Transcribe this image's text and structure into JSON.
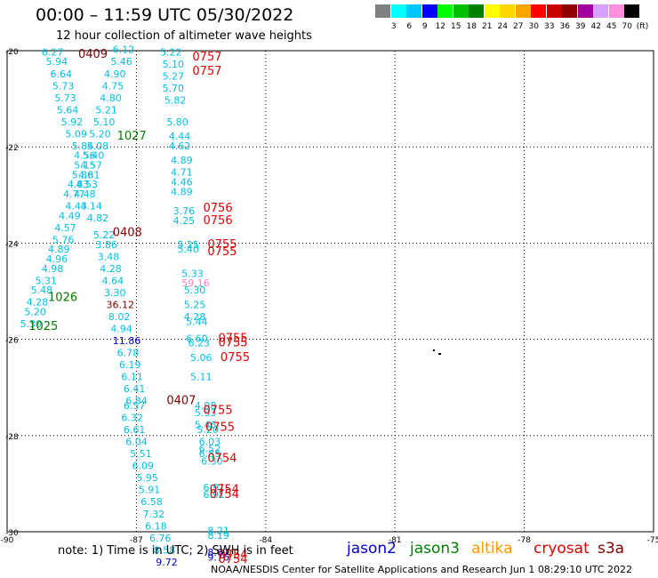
{
  "header": {
    "title": "00:00 – 11:59 UTC 05/30/2022",
    "subtitle": "12 hour collection of altimeter wave heights"
  },
  "legend": {
    "unit": "(ft)",
    "bins": [
      {
        "label": "3",
        "color": "#808080"
      },
      {
        "label": "6",
        "color": "#00ffff"
      },
      {
        "label": "9",
        "color": "#00c8ff"
      },
      {
        "label": "12",
        "color": "#0000ff"
      },
      {
        "label": "15",
        "color": "#00ff00"
      },
      {
        "label": "18",
        "color": "#00c000"
      },
      {
        "label": "21",
        "color": "#008000"
      },
      {
        "label": "24",
        "color": "#ffff00"
      },
      {
        "label": "27",
        "color": "#ffd700"
      },
      {
        "label": "30",
        "color": "#ffa500"
      },
      {
        "label": "33",
        "color": "#ff0000"
      },
      {
        "label": "36",
        "color": "#c80000"
      },
      {
        "label": "39",
        "color": "#900000"
      },
      {
        "label": "42",
        "color": "#a000a0"
      },
      {
        "label": "45",
        "color": "#d8a0ff"
      },
      {
        "label": "70",
        "color": "#ff90e0"
      },
      {
        "label": "",
        "color": "#000000"
      }
    ]
  },
  "map": {
    "lon_range": [
      -90,
      -75
    ],
    "lat_range": [
      -30,
      -20
    ],
    "lon_ticks": [
      "-90",
      "-87",
      "-84",
      "-81",
      "-78",
      "-75"
    ],
    "lat_ticks": [
      "-20",
      "-22",
      "-24",
      "-26",
      "-28",
      "-30"
    ],
    "lon_tick_values": [
      -90,
      -87,
      -84,
      -81,
      -78,
      -75
    ],
    "lat_tick_values": [
      -20,
      -22,
      -24,
      -26,
      -28,
      -30
    ],
    "colors": {
      "cyan": "#00bfe6",
      "blue": "#0000cc",
      "darkred": "#800000",
      "red": "#e00000",
      "green": "#008000",
      "pink": "#ff80c0"
    },
    "measurements": [
      {
        "lon": -89.2,
        "lat": -20.1,
        "v": "6.27",
        "c": "cyan"
      },
      {
        "lon": -89.1,
        "lat": -20.3,
        "v": "5.94",
        "c": "cyan"
      },
      {
        "lon": -89.0,
        "lat": -20.55,
        "v": "6.64",
        "c": "cyan"
      },
      {
        "lon": -88.95,
        "lat": -20.8,
        "v": "5.73",
        "c": "cyan"
      },
      {
        "lon": -88.9,
        "lat": -21.05,
        "v": "5.73",
        "c": "cyan"
      },
      {
        "lon": -88.85,
        "lat": -21.3,
        "v": "5.64",
        "c": "cyan"
      },
      {
        "lon": -88.75,
        "lat": -21.55,
        "v": "5.92",
        "c": "cyan"
      },
      {
        "lon": -88.65,
        "lat": -21.8,
        "v": "5.09",
        "c": "cyan"
      },
      {
        "lon": -88.5,
        "lat": -22.05,
        "v": "5.84",
        "c": "cyan"
      },
      {
        "lon": -88.45,
        "lat": -22.25,
        "v": "4.56",
        "c": "cyan"
      },
      {
        "lon": -88.45,
        "lat": -22.45,
        "v": "5.15",
        "c": "cyan"
      },
      {
        "lon": -88.5,
        "lat": -22.65,
        "v": "5.36",
        "c": "cyan"
      },
      {
        "lon": -88.6,
        "lat": -22.85,
        "v": "4.83",
        "c": "cyan"
      },
      {
        "lon": -88.7,
        "lat": -23.05,
        "v": "4.77",
        "c": "cyan"
      },
      {
        "lon": -88.65,
        "lat": -23.3,
        "v": "4.43",
        "c": "cyan"
      },
      {
        "lon": -88.8,
        "lat": -23.5,
        "v": "4.49",
        "c": "cyan"
      },
      {
        "lon": -88.9,
        "lat": -23.75,
        "v": "4.57",
        "c": "cyan"
      },
      {
        "lon": -88.95,
        "lat": -24.0,
        "v": "5.76",
        "c": "cyan"
      },
      {
        "lon": -89.05,
        "lat": -24.2,
        "v": "4.89",
        "c": "cyan"
      },
      {
        "lon": -89.1,
        "lat": -24.4,
        "v": "4.96",
        "c": "cyan"
      },
      {
        "lon": -89.2,
        "lat": -24.6,
        "v": "4.98",
        "c": "cyan"
      },
      {
        "lon": -89.35,
        "lat": -24.85,
        "v": "5.31",
        "c": "cyan"
      },
      {
        "lon": -89.45,
        "lat": -25.05,
        "v": "5.48",
        "c": "cyan"
      },
      {
        "lon": -89.55,
        "lat": -25.3,
        "v": "4.28",
        "c": "cyan"
      },
      {
        "lon": -89.6,
        "lat": -25.5,
        "v": "5.20",
        "c": "cyan"
      },
      {
        "lon": -89.7,
        "lat": -25.75,
        "v": "5.30",
        "c": "cyan"
      },
      {
        "lon": -87.55,
        "lat": -20.05,
        "v": "6.12",
        "c": "cyan"
      },
      {
        "lon": -87.6,
        "lat": -20.3,
        "v": "5.46",
        "c": "cyan"
      },
      {
        "lon": -87.75,
        "lat": -20.55,
        "v": "4.90",
        "c": "cyan"
      },
      {
        "lon": -87.8,
        "lat": -20.8,
        "v": "4.75",
        "c": "cyan"
      },
      {
        "lon": -87.85,
        "lat": -21.05,
        "v": "4.80",
        "c": "cyan"
      },
      {
        "lon": -87.95,
        "lat": -21.3,
        "v": "5.21",
        "c": "cyan"
      },
      {
        "lon": -88.0,
        "lat": -21.55,
        "v": "5.10",
        "c": "cyan"
      },
      {
        "lon": -88.1,
        "lat": -21.8,
        "v": "5.20",
        "c": "cyan"
      },
      {
        "lon": -88.15,
        "lat": -22.05,
        "v": "5.08",
        "c": "cyan"
      },
      {
        "lon": -88.25,
        "lat": -22.25,
        "v": "5.40",
        "c": "cyan"
      },
      {
        "lon": -88.3,
        "lat": -22.45,
        "v": "4.57",
        "c": "cyan"
      },
      {
        "lon": -88.35,
        "lat": -22.65,
        "v": "4.81",
        "c": "cyan"
      },
      {
        "lon": -88.4,
        "lat": -22.85,
        "v": "4.53",
        "c": "cyan"
      },
      {
        "lon": -88.45,
        "lat": -23.05,
        "v": "4.48",
        "c": "cyan"
      },
      {
        "lon": -88.3,
        "lat": -23.3,
        "v": "4.14",
        "c": "cyan"
      },
      {
        "lon": -88.15,
        "lat": -23.55,
        "v": "4.82",
        "c": "cyan"
      },
      {
        "lon": -88.0,
        "lat": -23.9,
        "v": "5.22",
        "c": "cyan"
      },
      {
        "lon": -87.95,
        "lat": -24.1,
        "v": "3.86",
        "c": "cyan"
      },
      {
        "lon": -87.9,
        "lat": -24.35,
        "v": "3.48",
        "c": "cyan"
      },
      {
        "lon": -87.85,
        "lat": -24.6,
        "v": "4.28",
        "c": "cyan"
      },
      {
        "lon": -87.8,
        "lat": -24.85,
        "v": "4.64",
        "c": "cyan"
      },
      {
        "lon": -87.75,
        "lat": -25.1,
        "v": "3.30",
        "c": "cyan"
      },
      {
        "lon": -87.7,
        "lat": -25.35,
        "v": "36.12",
        "c": "darkred"
      },
      {
        "lon": -87.65,
        "lat": -25.6,
        "v": "8.02",
        "c": "cyan"
      },
      {
        "lon": -87.6,
        "lat": -25.85,
        "v": "4.94",
        "c": "cyan"
      },
      {
        "lon": -87.55,
        "lat": -26.1,
        "v": "11.86",
        "c": "blue"
      },
      {
        "lon": -87.45,
        "lat": -26.35,
        "v": "6.78",
        "c": "cyan"
      },
      {
        "lon": -87.4,
        "lat": -26.6,
        "v": "6.19",
        "c": "cyan"
      },
      {
        "lon": -87.35,
        "lat": -26.85,
        "v": "6.11",
        "c": "cyan"
      },
      {
        "lon": -87.3,
        "lat": -27.1,
        "v": "6.41",
        "c": "cyan"
      },
      {
        "lon": -87.25,
        "lat": -27.35,
        "v": "6.84",
        "c": "cyan"
      },
      {
        "lon": -87.3,
        "lat": -27.45,
        "v": "6.57",
        "c": "cyan"
      },
      {
        "lon": -87.35,
        "lat": -27.7,
        "v": "6.32",
        "c": "cyan"
      },
      {
        "lon": -87.3,
        "lat": -27.95,
        "v": "6.61",
        "c": "cyan"
      },
      {
        "lon": -87.25,
        "lat": -28.2,
        "v": "6.04",
        "c": "cyan"
      },
      {
        "lon": -87.15,
        "lat": -28.45,
        "v": "5.51",
        "c": "cyan"
      },
      {
        "lon": -87.1,
        "lat": -28.7,
        "v": "6.09",
        "c": "cyan"
      },
      {
        "lon": -87.0,
        "lat": -28.95,
        "v": "5.95",
        "c": "cyan"
      },
      {
        "lon": -86.95,
        "lat": -29.2,
        "v": "5.91",
        "c": "cyan"
      },
      {
        "lon": -86.9,
        "lat": -29.45,
        "v": "6.58",
        "c": "cyan"
      },
      {
        "lon": -86.85,
        "lat": -29.7,
        "v": "7.32",
        "c": "cyan"
      },
      {
        "lon": -86.8,
        "lat": -29.95,
        "v": "6.18",
        "c": "cyan"
      },
      {
        "lon": -86.7,
        "lat": -30.2,
        "v": "6.76",
        "c": "cyan"
      },
      {
        "lon": -86.6,
        "lat": -30.45,
        "v": "8.58",
        "c": "cyan"
      },
      {
        "lon": -86.55,
        "lat": -30.7,
        "v": "9.72",
        "c": "blue"
      },
      {
        "lon": -86.45,
        "lat": -20.1,
        "v": "5.22",
        "c": "cyan"
      },
      {
        "lon": -86.4,
        "lat": -20.35,
        "v": "5.10",
        "c": "cyan"
      },
      {
        "lon": -86.4,
        "lat": -20.6,
        "v": "5.27",
        "c": "cyan"
      },
      {
        "lon": -86.4,
        "lat": -20.85,
        "v": "5.70",
        "c": "cyan"
      },
      {
        "lon": -86.35,
        "lat": -21.1,
        "v": "5.82",
        "c": "cyan"
      },
      {
        "lon": -86.3,
        "lat": -21.55,
        "v": "5.80",
        "c": "cyan"
      },
      {
        "lon": -86.25,
        "lat": -21.85,
        "v": "4.44",
        "c": "cyan"
      },
      {
        "lon": -86.25,
        "lat": -22.05,
        "v": "4.62",
        "c": "cyan"
      },
      {
        "lon": -86.2,
        "lat": -22.35,
        "v": "4.89",
        "c": "cyan"
      },
      {
        "lon": -86.2,
        "lat": -22.6,
        "v": "4.71",
        "c": "cyan"
      },
      {
        "lon": -86.2,
        "lat": -22.8,
        "v": "4.46",
        "c": "cyan"
      },
      {
        "lon": -86.2,
        "lat": -23.0,
        "v": "4.89",
        "c": "cyan"
      },
      {
        "lon": -86.15,
        "lat": -23.4,
        "v": "3.76",
        "c": "cyan"
      },
      {
        "lon": -86.15,
        "lat": -23.6,
        "v": "4.25",
        "c": "cyan"
      },
      {
        "lon": -86.05,
        "lat": -24.1,
        "v": "5.25",
        "c": "cyan"
      },
      {
        "lon": -86.05,
        "lat": -24.2,
        "v": "5.40",
        "c": "cyan"
      },
      {
        "lon": -85.95,
        "lat": -24.7,
        "v": "5.33",
        "c": "cyan"
      },
      {
        "lon": -85.95,
        "lat": -24.9,
        "v": "59.16",
        "c": "pink"
      },
      {
        "lon": -85.9,
        "lat": -25.05,
        "v": "5.30",
        "c": "cyan"
      },
      {
        "lon": -85.9,
        "lat": -25.35,
        "v": "5.25",
        "c": "cyan"
      },
      {
        "lon": -85.9,
        "lat": -25.6,
        "v": "4.28",
        "c": "cyan"
      },
      {
        "lon": -85.85,
        "lat": -25.7,
        "v": "5.44",
        "c": "cyan"
      },
      {
        "lon": -85.85,
        "lat": -26.05,
        "v": "6.60",
        "c": "cyan"
      },
      {
        "lon": -85.8,
        "lat": -26.15,
        "v": "6.23",
        "c": "cyan"
      },
      {
        "lon": -85.75,
        "lat": -26.45,
        "v": "5.06",
        "c": "cyan"
      },
      {
        "lon": -85.75,
        "lat": -26.85,
        "v": "5.11",
        "c": "cyan"
      },
      {
        "lon": -85.65,
        "lat": -27.45,
        "v": "4.98",
        "c": "cyan"
      },
      {
        "lon": -85.65,
        "lat": -27.6,
        "v": "5.33",
        "c": "cyan"
      },
      {
        "lon": -85.65,
        "lat": -27.85,
        "v": "5.46",
        "c": "cyan"
      },
      {
        "lon": -85.6,
        "lat": -27.95,
        "v": "5.20",
        "c": "cyan"
      },
      {
        "lon": -85.55,
        "lat": -28.2,
        "v": "6.03",
        "c": "cyan"
      },
      {
        "lon": -85.55,
        "lat": -28.35,
        "v": "6.52",
        "c": "cyan"
      },
      {
        "lon": -85.55,
        "lat": -28.45,
        "v": "6.85",
        "c": "cyan"
      },
      {
        "lon": -85.5,
        "lat": -28.6,
        "v": "6.30",
        "c": "cyan"
      },
      {
        "lon": -85.45,
        "lat": -29.15,
        "v": "6.91",
        "c": "cyan"
      },
      {
        "lon": -85.45,
        "lat": -29.3,
        "v": "6.91",
        "c": "cyan"
      },
      {
        "lon": -85.35,
        "lat": -30.05,
        "v": "8.21",
        "c": "cyan"
      },
      {
        "lon": -85.35,
        "lat": -30.15,
        "v": "8.19",
        "c": "cyan"
      },
      {
        "lon": -85.35,
        "lat": -30.5,
        "v": "8.67",
        "c": "blue"
      },
      {
        "lon": -85.35,
        "lat": -30.6,
        "v": "9.76",
        "c": "blue"
      }
    ],
    "pass_labels": [
      {
        "lon": -88.35,
        "lat": -20.15,
        "t": "0409",
        "c": "darkred"
      },
      {
        "lon": -87.45,
        "lat": -21.85,
        "t": "1027",
        "c": "green"
      },
      {
        "lon": -87.55,
        "lat": -23.85,
        "t": "0408",
        "c": "darkred"
      },
      {
        "lon": -89.05,
        "lat": -25.2,
        "t": "1026",
        "c": "green"
      },
      {
        "lon": -89.5,
        "lat": -25.8,
        "t": "1025",
        "c": "green"
      },
      {
        "lon": -86.3,
        "lat": -27.35,
        "t": "0407",
        "c": "darkred"
      },
      {
        "lon": -85.7,
        "lat": -20.2,
        "t": "0757",
        "c": "red"
      },
      {
        "lon": -85.7,
        "lat": -20.5,
        "t": "0757",
        "c": "red"
      },
      {
        "lon": -85.45,
        "lat": -23.35,
        "t": "0756",
        "c": "red"
      },
      {
        "lon": -85.45,
        "lat": -23.6,
        "t": "0756",
        "c": "red"
      },
      {
        "lon": -85.35,
        "lat": -24.1,
        "t": "0755",
        "c": "red"
      },
      {
        "lon": -85.35,
        "lat": -24.25,
        "t": "0755",
        "c": "red"
      },
      {
        "lon": -85.1,
        "lat": -26.05,
        "t": "0755",
        "c": "red"
      },
      {
        "lon": -85.1,
        "lat": -26.15,
        "t": "0755",
        "c": "red"
      },
      {
        "lon": -85.05,
        "lat": -26.45,
        "t": "0755",
        "c": "red"
      },
      {
        "lon": -85.45,
        "lat": -27.55,
        "t": "0755",
        "c": "red"
      },
      {
        "lon": -85.4,
        "lat": -27.9,
        "t": "0755",
        "c": "red"
      },
      {
        "lon": -85.35,
        "lat": -28.55,
        "t": "0754",
        "c": "red"
      },
      {
        "lon": -85.3,
        "lat": -29.2,
        "t": "0754",
        "c": "red"
      },
      {
        "lon": -85.3,
        "lat": -29.3,
        "t": "0754",
        "c": "red"
      },
      {
        "lon": -85.1,
        "lat": -30.55,
        "t": "0754",
        "c": "red"
      },
      {
        "lon": -85.1,
        "lat": -30.65,
        "t": "0754",
        "c": "red"
      }
    ]
  },
  "footer": {
    "note": "note: 1) Time is in UTC; 2) SWH is in feet",
    "missions": [
      {
        "name": "jason2",
        "color": "#0000cc"
      },
      {
        "name": "jason3",
        "color": "#008000"
      },
      {
        "name": "altika",
        "color": "#ff9900"
      },
      {
        "name": "cryosat",
        "color": "#e00000"
      },
      {
        "name": "s3a",
        "color": "#800000"
      }
    ],
    "credit": "NOAA/NESDIS Center for Satellite Applications and Research    Jun  1 08:29:10 UTC 2022"
  }
}
